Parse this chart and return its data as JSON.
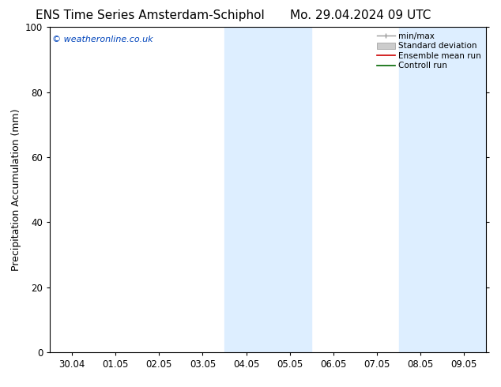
{
  "title_left": "ENS Time Series Amsterdam-Schiphol",
  "title_right": "Mo. 29.04.2024 09 UTC",
  "ylabel": "Precipitation Accumulation (mm)",
  "watermark": "© weatheronline.co.uk",
  "watermark_color": "#0044bb",
  "xlim_start": -0.5,
  "xlim_end": 9.5,
  "ylim": [
    0,
    100
  ],
  "xtick_labels": [
    "30.04",
    "01.05",
    "02.05",
    "03.05",
    "04.05",
    "05.05",
    "06.05",
    "07.05",
    "08.05",
    "09.05"
  ],
  "ytick_values": [
    0,
    20,
    40,
    60,
    80,
    100
  ],
  "shaded_regions": [
    {
      "xmin": 3.5,
      "xmax": 5.5
    },
    {
      "xmin": 7.5,
      "xmax": 9.5
    }
  ],
  "shaded_color": "#ddeeff",
  "background_color": "#ffffff",
  "spine_color": "#000000",
  "title_fontsize": 11,
  "label_fontsize": 9,
  "tick_fontsize": 8.5,
  "legend_fontsize": 7.5
}
